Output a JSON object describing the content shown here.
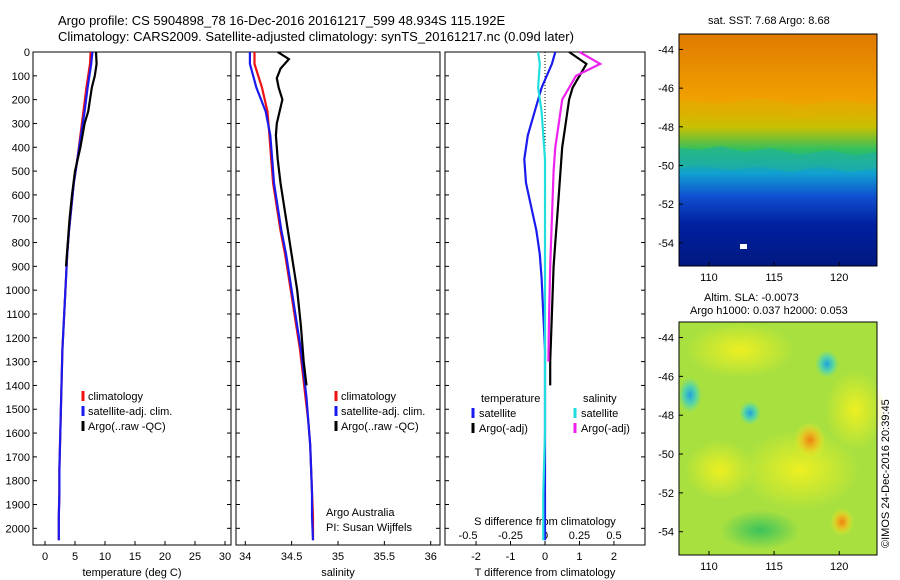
{
  "header": {
    "title_line1": "Argo profile: CS 5904898_78 16-Dec-2016 20161217_599 48.934S 115.192E",
    "title_line2": "Climatology: CARS2009. Satellite-adjusted climatology: synTS_20161217.nc (0.09d later)"
  },
  "colors": {
    "climatology": "#ee1111",
    "satellite": "#1a1aee",
    "argo": "#000000",
    "sal_satellite": "#22dddd",
    "sal_argo": "#ee22ee"
  },
  "chart_data": [
    {
      "type": "line",
      "id": "temperature",
      "xlabel": "temperature (deg C)",
      "ylabel": "",
      "xlim": [
        -2,
        31
      ],
      "ylim": [
        2070,
        0
      ],
      "xticks": [
        "0",
        "5",
        "10",
        "15",
        "20",
        "25",
        "30"
      ],
      "xtick_values": [
        0,
        5,
        10,
        15,
        20,
        25,
        30
      ],
      "yticks": [
        "0",
        "100",
        "200",
        "300",
        "400",
        "500",
        "600",
        "700",
        "800",
        "900",
        "1000",
        "1100",
        "1200",
        "1300",
        "1400",
        "1500",
        "1600",
        "1700",
        "1800",
        "1900",
        "2000"
      ],
      "legend": [
        "climatology",
        "satellite-adj. clim.",
        "Argo(..raw -QC)"
      ],
      "series": [
        {
          "name": "climatology",
          "color_key": "climatology",
          "x": [
            7.6,
            7.5,
            6.9,
            6.4,
            5.9,
            5.4,
            4.8,
            4.4,
            4.0,
            3.7,
            3.5,
            3.3,
            3.1,
            2.9,
            2.8,
            2.7,
            2.6,
            2.5,
            2.4,
            2.4,
            2.3,
            2.3
          ],
          "y": [
            0,
            50,
            150,
            250,
            350,
            450,
            550,
            650,
            750,
            850,
            950,
            1050,
            1150,
            1250,
            1350,
            1450,
            1550,
            1650,
            1750,
            1850,
            1950,
            2050
          ]
        },
        {
          "name": "satellite-adj. clim.",
          "color_key": "satellite",
          "x": [
            7.9,
            7.7,
            7.1,
            6.6,
            6.0,
            5.4,
            4.8,
            4.4,
            4.0,
            3.7,
            3.5,
            3.3,
            3.1,
            2.9,
            2.8,
            2.7,
            2.6,
            2.5,
            2.4,
            2.4,
            2.3,
            2.3
          ],
          "y": [
            0,
            50,
            150,
            250,
            350,
            450,
            550,
            650,
            750,
            850,
            950,
            1050,
            1150,
            1250,
            1350,
            1450,
            1550,
            1650,
            1750,
            1850,
            1950,
            2050
          ]
        },
        {
          "name": "Argo(..raw -QC)",
          "color_key": "argo",
          "x": [
            8.5,
            8.6,
            8.3,
            7.8,
            7.5,
            7.2,
            6.6,
            5.9,
            5.0,
            4.5,
            4.1,
            3.8,
            3.5
          ],
          "y": [
            0,
            50,
            100,
            150,
            200,
            250,
            300,
            400,
            500,
            600,
            700,
            800,
            900
          ]
        }
      ]
    },
    {
      "type": "line",
      "id": "salinity",
      "xlabel": "salinity",
      "xlim": [
        33.9,
        36.1
      ],
      "ylim": [
        2070,
        0
      ],
      "xticks": [
        "34",
        "34.5",
        "35",
        "35.5",
        "36"
      ],
      "xtick_values": [
        34,
        34.5,
        35,
        35.5,
        36
      ],
      "legend": [
        "climatology",
        "satellite-adj. clim.",
        "Argo(..raw -QC)"
      ],
      "series": [
        {
          "name": "climatology",
          "color_key": "climatology",
          "x": [
            34.1,
            34.1,
            34.18,
            34.24,
            34.26,
            34.28,
            34.3,
            34.34,
            34.38,
            34.43,
            34.47,
            34.51,
            34.55,
            34.59,
            34.62,
            34.65,
            34.68,
            34.7,
            34.71,
            34.72,
            34.73,
            34.73
          ],
          "y": [
            0,
            50,
            150,
            250,
            350,
            450,
            550,
            650,
            750,
            850,
            950,
            1050,
            1150,
            1250,
            1350,
            1450,
            1550,
            1650,
            1750,
            1850,
            1950,
            2050
          ]
        },
        {
          "name": "satellite-adj. clim.",
          "color_key": "satellite",
          "x": [
            34.05,
            34.05,
            34.12,
            34.22,
            34.27,
            34.29,
            34.31,
            34.35,
            34.39,
            34.44,
            34.48,
            34.52,
            34.56,
            34.6,
            34.63,
            34.66,
            34.68,
            34.7,
            34.71,
            34.72,
            34.72,
            34.73
          ],
          "y": [
            0,
            50,
            150,
            250,
            350,
            450,
            550,
            650,
            750,
            850,
            950,
            1050,
            1150,
            1250,
            1350,
            1450,
            1550,
            1650,
            1750,
            1850,
            1950,
            2050
          ]
        },
        {
          "name": "Argo(..raw -QC)",
          "color_key": "argo",
          "x": [
            34.35,
            34.47,
            34.38,
            34.34,
            34.36,
            34.4,
            34.37,
            34.34,
            34.33,
            34.35,
            34.38,
            34.42,
            34.46,
            34.5,
            34.56,
            34.6,
            34.63,
            34.66
          ],
          "y": [
            0,
            30,
            70,
            110,
            150,
            200,
            250,
            300,
            350,
            450,
            550,
            650,
            750,
            850,
            1000,
            1150,
            1300,
            1400
          ]
        }
      ]
    },
    {
      "type": "line",
      "id": "difference",
      "xlabel": "T difference from climatology",
      "xlabel_top": "S difference from climatology",
      "xlim": [
        -2.9,
        2.9
      ],
      "ylim": [
        2070,
        0
      ],
      "xticks": [
        "-2",
        "-1",
        "0",
        "1",
        "2"
      ],
      "xtick_values": [
        -2,
        -1,
        0,
        1,
        2
      ],
      "top_ticks": [
        "-0.5",
        "-0.25",
        "0",
        "0.25",
        "0.5"
      ],
      "top_tick_values": [
        -2,
        -1,
        0,
        1,
        2
      ],
      "legend_headings": [
        "temperature",
        "salinity"
      ],
      "legend": [
        "satellite",
        "Argo(-adj)",
        "satellite",
        "Argo(-adj)"
      ],
      "series": [
        {
          "name": "satellite",
          "color_key": "satellite",
          "x": [
            0.3,
            0.2,
            -0.1,
            -0.3,
            -0.5,
            -0.6,
            -0.55,
            -0.4,
            -0.25,
            -0.15,
            -0.1,
            -0.05,
            0.0,
            0.0,
            0.0,
            0.0,
            0.0
          ],
          "y": [
            0,
            50,
            150,
            250,
            350,
            450,
            550,
            650,
            750,
            850,
            950,
            1100,
            1250,
            1400,
            1600,
            1800,
            2050
          ]
        },
        {
          "name": "Argo(-adj)",
          "color_key": "argo",
          "x": [
            0.7,
            1.2,
            1.0,
            0.8,
            0.7,
            0.6,
            0.5,
            0.45,
            0.4,
            0.35,
            0.3,
            0.25,
            0.2,
            0.15,
            0.15
          ],
          "y": [
            0,
            50,
            100,
            150,
            200,
            300,
            400,
            500,
            600,
            700,
            800,
            900,
            1100,
            1300,
            1400
          ]
        },
        {
          "name": "satellite",
          "color_key": "sal_satellite",
          "x": [
            -0.2,
            -0.15,
            -0.2,
            -0.1,
            -0.05,
            0.0,
            0.0,
            0.0,
            0.0,
            0.0,
            0.0,
            -0.05,
            -0.05
          ],
          "y": [
            0,
            50,
            150,
            250,
            350,
            450,
            600,
            800,
            1000,
            1300,
            1600,
            1850,
            2050
          ]
        },
        {
          "name": "Argo(-adj)",
          "color_key": "sal_argo",
          "x": [
            1.0,
            1.6,
            0.9,
            0.7,
            0.5,
            0.4,
            0.3,
            0.25,
            0.2,
            0.15,
            0.12,
            0.1
          ],
          "y": [
            0,
            50,
            100,
            150,
            200,
            300,
            400,
            500,
            700,
            900,
            1100,
            1300
          ]
        }
      ]
    }
  ],
  "annotations": {
    "line1": "Argo Australia",
    "line2": "PI: Susan Wijffels"
  },
  "map_sst": {
    "title": "sat. SST: 7.68  Argo: 8.68",
    "xticks": [
      "110",
      "115",
      "120"
    ],
    "yticks": [
      "-44",
      "-46",
      "-48",
      "-50",
      "-52",
      "-54"
    ]
  },
  "map_sla": {
    "title1": "Altim. SLA: -0.0073",
    "title2": "Argo h1000: 0.037 h2000: 0.053",
    "xticks": [
      "110",
      "115",
      "120"
    ],
    "yticks": [
      "-44",
      "-46",
      "-48",
      "-50",
      "-52",
      "-54"
    ]
  },
  "credit": "©IMOS 24-Dec-2016 20:39:45"
}
